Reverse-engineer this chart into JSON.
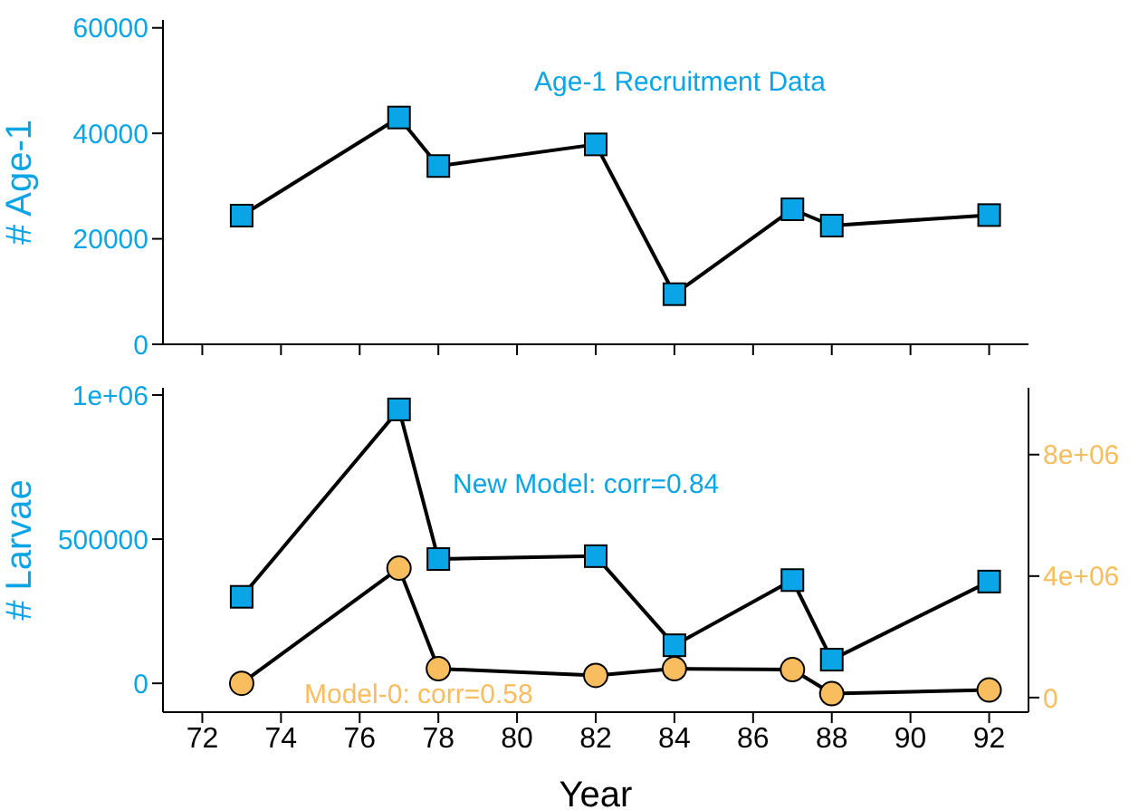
{
  "chart_data": [
    {
      "type": "line",
      "annotations": [
        "Age-1 Recruitment Data"
      ],
      "ylabel": "# Age-1",
      "x": [
        73,
        77,
        78,
        82,
        84,
        87,
        88,
        92
      ],
      "series": [
        {
          "color": "#0aa5e6",
          "values": [
            24400,
            43000,
            33800,
            37900,
            9500,
            25600,
            22500,
            24500
          ]
        }
      ],
      "xlim": [
        71,
        93
      ],
      "xticks": [
        72,
        74,
        76,
        78,
        80,
        82,
        84,
        86,
        88,
        90,
        92
      ],
      "ylim": [
        0,
        61500
      ],
      "yticks": [
        0,
        20000,
        40000,
        60000
      ],
      "tick_labels": "y",
      "marker": "square",
      "line_style": "solid",
      "grid": false
    },
    {
      "type": "line",
      "xlabel": "Year",
      "ylabel": "# Larvae",
      "x": [
        73,
        77,
        78,
        82,
        84,
        87,
        88,
        92
      ],
      "series": [
        {
          "name": "New Model: corr=0.84",
          "color": "#0aa5e6",
          "marker": "square",
          "values": [
            300000,
            950000,
            431000,
            441000,
            132000,
            358000,
            82000,
            353000
          ]
        },
        {
          "name": "Model-0: corr=0.58",
          "color": "#f8bd5e",
          "marker": "circle",
          "axis": "y2",
          "values": [
            470000,
            4260000,
            950000,
            730000,
            950000,
            920000,
            130000,
            250000
          ]
        }
      ],
      "xlim": [
        71,
        93
      ],
      "xticks": [
        72,
        74,
        76,
        78,
        80,
        82,
        84,
        86,
        88,
        90,
        92
      ],
      "ylim": [
        -100000,
        1025000
      ],
      "yticks": [
        0,
        500000,
        {
          "value": 1000000,
          "label": "1e+06"
        }
      ],
      "y2lim": [
        -480000,
        10200000
      ],
      "y2ticks": [
        0,
        {
          "value": 4000000,
          "label": "4e+06"
        },
        {
          "value": 8000000,
          "label": "8e+06"
        }
      ],
      "line_style": "solid",
      "grid": false
    }
  ]
}
